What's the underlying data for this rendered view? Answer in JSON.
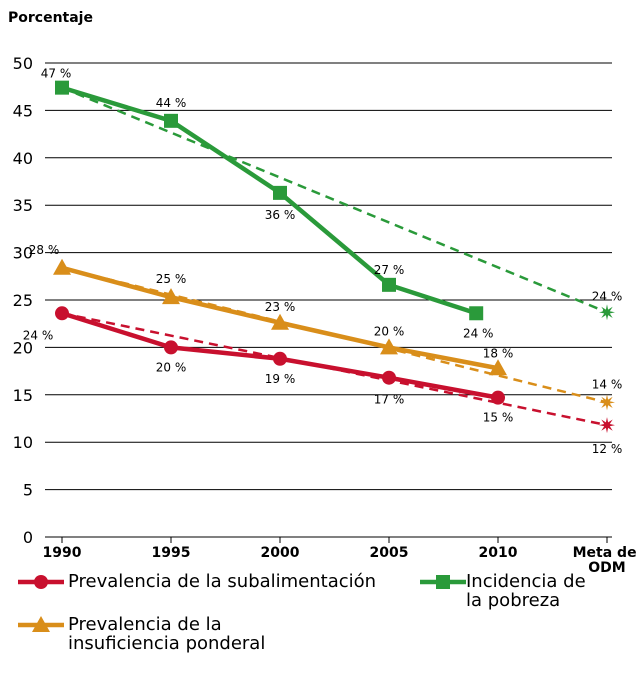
{
  "chart_data": {
    "type": "line",
    "y_label": "Porcentaje",
    "xlim": [
      1990,
      2015
    ],
    "xticks": [
      1990,
      1995,
      2000,
      2005,
      2010,
      {
        "value": 2015,
        "label": "Meta del ODM"
      }
    ],
    "ylim": [
      0,
      50
    ],
    "yticks": [
      0,
      5,
      10,
      15,
      20,
      25,
      30,
      35,
      40,
      45,
      50
    ],
    "grid": true,
    "series": [
      {
        "name": "Prevalencia de la subalimentación",
        "color": "#c8102e",
        "marker": "circle",
        "x": [
          1990,
          1995,
          2000,
          2005,
          2010,
          2015
        ],
        "values": [
          23.6,
          20.0,
          18.8,
          16.8,
          14.7,
          11.8
        ],
        "value_labels": [
          "24 %",
          "20 %",
          "19 %",
          "17 %",
          "15 %",
          "12 %"
        ]
      },
      {
        "name": "Incidencia de la pobreza",
        "color": "#2a9a3a",
        "marker": "square",
        "x": [
          1990,
          1995,
          2000,
          2005,
          2009,
          2015
        ],
        "values": [
          47.4,
          43.9,
          36.3,
          26.6,
          23.6,
          23.7
        ],
        "value_labels": [
          "47 %",
          "44 %",
          "36 %",
          "27 %",
          "24 %",
          "24 %"
        ]
      },
      {
        "name": "Prevalencia de la insuficiencia ponderal",
        "color": "#d98e1a",
        "marker": "triangle",
        "x": [
          1990,
          1995,
          2000,
          2005,
          2010,
          2015
        ],
        "values": [
          28.4,
          25.3,
          22.6,
          20.0,
          17.8,
          14.2
        ],
        "value_labels": [
          "28 %",
          "25 %",
          "23 %",
          "20 %",
          "18 %",
          "14 %"
        ]
      }
    ]
  }
}
